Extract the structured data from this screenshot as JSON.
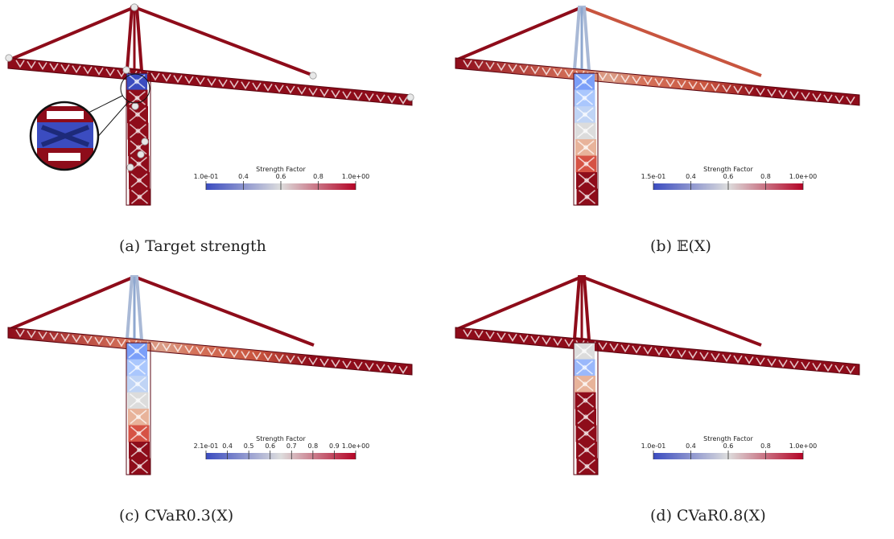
{
  "colors": {
    "crane_red": "#8e0c1a",
    "crane_dark": "#5a0510",
    "node_marker": "#e8e8e8",
    "cmap_low": "#3b4cc0",
    "cmap_mid": "#dddddd",
    "cmap_high": "#b40426"
  },
  "panels": [
    {
      "caption": "(a)  Target strength",
      "colorbar": {
        "title": "Strength Factor",
        "ticks": [
          "1.0e-01",
          "0.4",
          "0.6",
          "0.8",
          "1.0e+00"
        ]
      },
      "tower_section_colors": [
        "#3b4cc0",
        "#8e0c1a",
        "#8e0c1a",
        "#8e0c1a",
        "#8e0c1a",
        "#8e0c1a",
        "#8e0c1a",
        "#8e0c1a"
      ],
      "jib_gradient": false,
      "show_markers": true,
      "show_zoom": true
    },
    {
      "caption": "(b)  𝔼(X)",
      "colorbar": {
        "title": "Strength Factor",
        "ticks": [
          "1.5e-01",
          "0.4",
          "0.6",
          "0.8",
          "1.0e+00"
        ]
      },
      "tower_section_colors": [
        "#7b9ff9",
        "#aac7fd",
        "#c0d4f5",
        "#dcdcdc",
        "#e8b39a",
        "#d65244",
        "#8e0c1a",
        "#8e0c1a"
      ],
      "jib_gradient": true,
      "show_markers": false,
      "show_zoom": false
    },
    {
      "caption": "(c)  CVaR0.3(X)",
      "colorbar": {
        "title": "Strength Factor",
        "ticks": [
          "2.1e-01",
          "0.4",
          "0.5",
          "0.6",
          "0.7",
          "0.8",
          "0.9",
          "1.0e+00"
        ]
      },
      "tower_section_colors": [
        "#7b9ff9",
        "#aac7fd",
        "#c0d4f5",
        "#dcdcdc",
        "#e8b39a",
        "#d65244",
        "#8e0c1a",
        "#8e0c1a"
      ],
      "jib_gradient": true,
      "show_markers": false,
      "show_zoom": false
    },
    {
      "caption": "(d)  CVaR0.8(X)",
      "colorbar": {
        "title": "Strength Factor",
        "ticks": [
          "1.0e-01",
          "0.4",
          "0.6",
          "0.8",
          "1.0e+00"
        ]
      },
      "tower_section_colors": [
        "#dcdcdc",
        "#9ab8fb",
        "#e8b39a",
        "#8e0c1a",
        "#8e0c1a",
        "#8e0c1a",
        "#8e0c1a",
        "#8e0c1a"
      ],
      "jib_gradient": false,
      "show_markers": false,
      "show_zoom": false
    }
  ]
}
